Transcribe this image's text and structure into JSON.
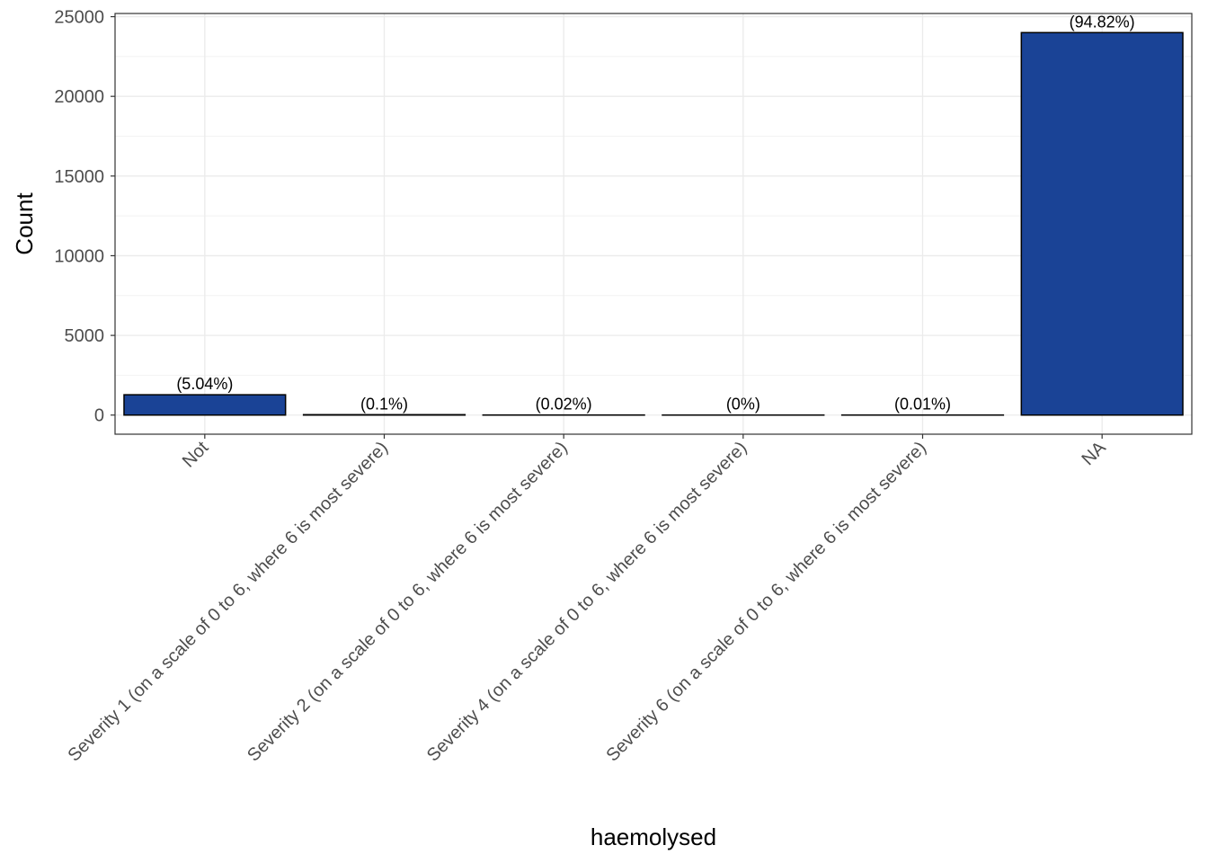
{
  "chart_data": {
    "type": "bar",
    "title": "",
    "xlabel": "haemolysed",
    "ylabel": "Count",
    "categories": [
      "Not",
      "Severity 1 (on a scale of 0 to 6, where 6 is most severe)",
      "Severity 2 (on a scale of 0 to 6, where 6 is most severe)",
      "Severity 4 (on a scale of 0 to 6, where 6 is most severe)",
      "Severity 6 (on a scale of 0 to 6, where 6 is most severe)",
      "NA"
    ],
    "values": [
      1275,
      25,
      5,
      1,
      3,
      24000
    ],
    "labels": [
      "(5.04%)",
      "(0.1%)",
      "(0.02%)",
      "(0%)",
      "(0.01%)",
      "(94.82%)"
    ],
    "ylim": [
      -1200,
      25200
    ],
    "yticks": [
      0,
      5000,
      10000,
      15000,
      20000,
      25000
    ],
    "ytick_labels": [
      "0",
      "5000",
      "10000",
      "15000",
      "20000",
      "25000"
    ],
    "grid": true,
    "legend": "none",
    "colors": {
      "bar_fill": "#1a4396",
      "bar_outline": "#000000",
      "grid_major": "#ebebeb",
      "grid_minor": "#f2f2f2",
      "panel_border": "#333333"
    }
  }
}
